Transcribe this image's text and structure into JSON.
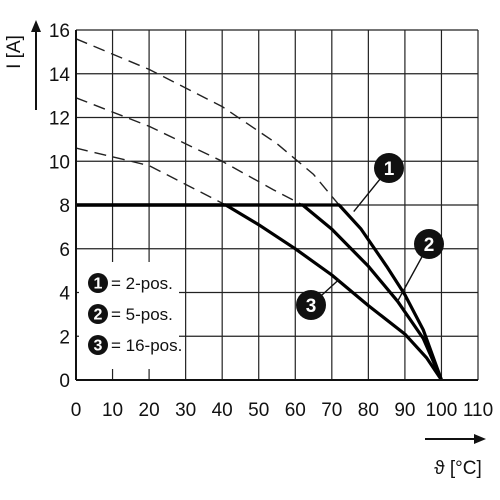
{
  "chart_data": {
    "type": "line",
    "xlabel": "ϑ [°C]",
    "ylabel": "I [A]",
    "xlim": [
      0,
      110
    ],
    "ylim": [
      0,
      16
    ],
    "x_ticks": [
      "0",
      "10",
      "20",
      "30",
      "40",
      "50",
      "60",
      "70",
      "80",
      "90",
      "100",
      "110"
    ],
    "y_ticks": [
      "0",
      "2",
      "4",
      "6",
      "8",
      "10",
      "12",
      "14",
      "16"
    ],
    "grid": true,
    "series": [
      {
        "name": "2-pos.",
        "badge": "1",
        "style": "solid",
        "points": [
          [
            0,
            8
          ],
          [
            72,
            8
          ],
          [
            78,
            6.9
          ],
          [
            85,
            5.2
          ],
          [
            90,
            3.9
          ],
          [
            95,
            2.3
          ],
          [
            100,
            0
          ]
        ]
      },
      {
        "name": "5-pos.",
        "badge": "2",
        "style": "solid",
        "points": [
          [
            0,
            8
          ],
          [
            62,
            8
          ],
          [
            70,
            6.9
          ],
          [
            80,
            5.2
          ],
          [
            88,
            3.6
          ],
          [
            95,
            1.9
          ],
          [
            100,
            0
          ]
        ]
      },
      {
        "name": "16-pos.",
        "badge": "3",
        "style": "solid",
        "points": [
          [
            0,
            8
          ],
          [
            41,
            8
          ],
          [
            50,
            7.1
          ],
          [
            60,
            6.0
          ],
          [
            70,
            4.8
          ],
          [
            80,
            3.4
          ],
          [
            90,
            2.1
          ],
          [
            96,
            1.0
          ],
          [
            100,
            0
          ]
        ]
      }
    ],
    "dashed_extensions": [
      {
        "points": [
          [
            0,
            15.6
          ],
          [
            20,
            14.2
          ],
          [
            40,
            12.5
          ],
          [
            55,
            10.8
          ],
          [
            65,
            9.4
          ],
          [
            72,
            8
          ]
        ]
      },
      {
        "points": [
          [
            0,
            12.9
          ],
          [
            20,
            11.6
          ],
          [
            40,
            10.0
          ],
          [
            54,
            8.7
          ],
          [
            62,
            8
          ]
        ]
      },
      {
        "points": [
          [
            0,
            10.6
          ],
          [
            20,
            9.8
          ],
          [
            41,
            8
          ]
        ]
      }
    ],
    "legend": {
      "placement": "bottom-left",
      "entries": [
        {
          "badge": "1",
          "label": "= 2-pos."
        },
        {
          "badge": "2",
          "label": "= 5-pos."
        },
        {
          "badge": "3",
          "label": "= 16-pos."
        }
      ]
    },
    "callouts": [
      {
        "badge": "1",
        "label_at": "right-mid",
        "points_to_series": 0
      },
      {
        "badge": "2",
        "label_at": "right-lower",
        "points_to_series": 1
      },
      {
        "badge": "3",
        "label_at": "lower-center",
        "points_to_series": 2
      }
    ]
  }
}
